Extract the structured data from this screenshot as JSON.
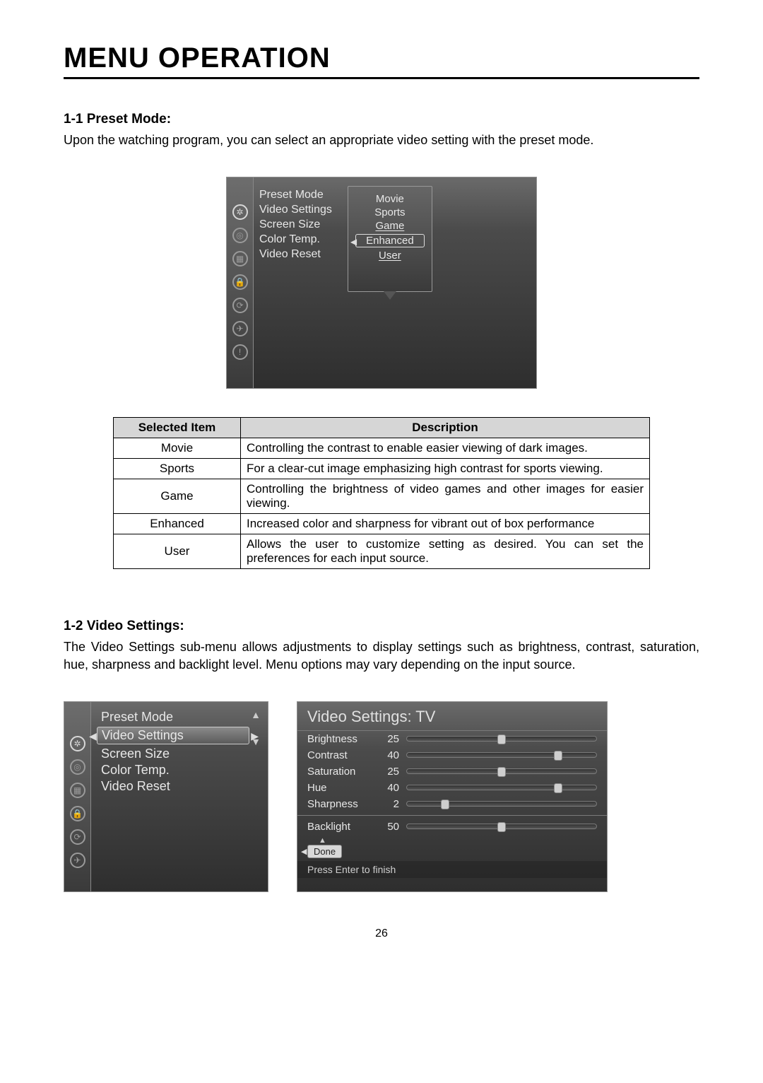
{
  "page": {
    "title": "MENU OPERATION",
    "number": "26"
  },
  "section1": {
    "heading": "1-1  Preset Mode:",
    "text": "Upon the watching program, you can select an appropriate video setting with the preset mode."
  },
  "osd1": {
    "menu_items": [
      "Preset Mode",
      "Video Settings",
      "Screen Size",
      "Color Temp.",
      "Video Reset"
    ],
    "submenu": {
      "options": [
        "Movie",
        "Sports",
        "Game",
        "Enhanced",
        "User"
      ],
      "selected_index": 3
    },
    "icons": [
      "gear",
      "sound",
      "picture",
      "lock",
      "clock",
      "world",
      "info"
    ],
    "active_icon_index": 0
  },
  "desc_table": {
    "headers": [
      "Selected Item",
      "Description"
    ],
    "rows": [
      [
        "Movie",
        "Controlling the contrast to enable easier viewing of dark images."
      ],
      [
        "Sports",
        "For a clear-cut image emphasizing high contrast for sports viewing."
      ],
      [
        "Game",
        "Controlling the brightness of video games and other images for easier viewing."
      ],
      [
        "Enhanced",
        "Increased color and sharpness for vibrant out of box performance"
      ],
      [
        "User",
        "Allows the user to customize setting as desired.  You can set the preferences for each input source."
      ]
    ]
  },
  "section2": {
    "heading": "1-2  Video Settings:",
    "text": "The Video Settings sub-menu allows adjustments to display settings such as brightness, contrast, saturation, hue, sharpness and backlight level. Menu options may vary depending on the input source."
  },
  "osd2": {
    "menu_items": [
      "Preset Mode",
      "Video Settings",
      "Screen Size",
      "Color Temp.",
      "Video Reset"
    ],
    "selected_index": 1,
    "icons": [
      "gear",
      "sound",
      "picture",
      "lock",
      "clock",
      "world"
    ],
    "active_icon_index": 0
  },
  "osd3": {
    "title": "Video Settings: TV",
    "sliders": [
      {
        "label": "Brightness",
        "value": 25,
        "max": 50
      },
      {
        "label": "Contrast",
        "value": 40,
        "max": 50
      },
      {
        "label": "Saturation",
        "value": 25,
        "max": 50
      },
      {
        "label": "Hue",
        "value": 40,
        "max": 50
      },
      {
        "label": "Sharpness",
        "value": 2,
        "max": 10
      }
    ],
    "backlight": {
      "label": "Backlight",
      "value": 50,
      "max": 100
    },
    "done_label": "Done",
    "hint": "Press Enter to finish"
  },
  "colors": {
    "osd_text": "#e8e8e8",
    "table_header_bg": "#d6d6d6",
    "slider_thumb": "#cfcfcf"
  }
}
